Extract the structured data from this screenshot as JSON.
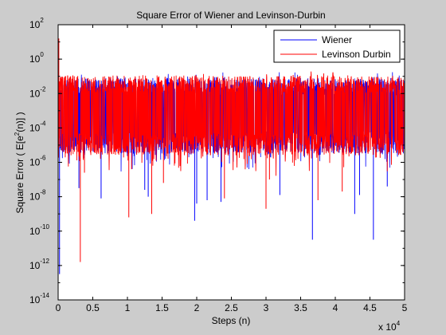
{
  "figure": {
    "background": "#cccccc",
    "axes_background": "#ffffff"
  },
  "chart_data": {
    "type": "line",
    "title": "Square Error of Wiener and Levinson-Durbin",
    "xlabel": "Steps (n)",
    "ylabel_prefix": "Square Error ( E[e",
    "ylabel_sup": "2",
    "ylabel_suffix": "(n)] )",
    "x_multiplier_text": "x 10",
    "x_multiplier_exp": "4",
    "xlim": [
      0,
      5
    ],
    "ylim_log10": [
      -14,
      2
    ],
    "yscale": "log",
    "grid": false,
    "legend_position": "top-right",
    "x_ticks": [
      {
        "value": 0,
        "label": "0"
      },
      {
        "value": 0.5,
        "label": "0.5"
      },
      {
        "value": 1,
        "label": "1"
      },
      {
        "value": 1.5,
        "label": "1.5"
      },
      {
        "value": 2,
        "label": "2"
      },
      {
        "value": 2.5,
        "label": "2.5"
      },
      {
        "value": 3,
        "label": "3"
      },
      {
        "value": 3.5,
        "label": "3.5"
      },
      {
        "value": 4,
        "label": "4"
      },
      {
        "value": 4.5,
        "label": "4.5"
      },
      {
        "value": 5,
        "label": "5"
      }
    ],
    "y_ticks": [
      {
        "exp": 2,
        "base": "10",
        "sup": "2"
      },
      {
        "exp": 0,
        "base": "10",
        "sup": "0"
      },
      {
        "exp": -2,
        "base": "10",
        "sup": "-2"
      },
      {
        "exp": -4,
        "base": "10",
        "sup": "-4"
      },
      {
        "exp": -6,
        "base": "10",
        "sup": "-6"
      },
      {
        "exp": -8,
        "base": "10",
        "sup": "-8"
      },
      {
        "exp": -10,
        "base": "10",
        "sup": "-10"
      },
      {
        "exp": -12,
        "base": "10",
        "sup": "-12"
      },
      {
        "exp": -14,
        "base": "10",
        "sup": "-14"
      }
    ],
    "series": [
      {
        "name": "Wiener",
        "color": "#0000ff",
        "band_log10": {
          "upper": -1.1,
          "lower": -5.5,
          "peak_top": -0.7
        },
        "dips": [
          {
            "x": 0.02,
            "log10": -12.5
          },
          {
            "x": 0.3,
            "log10": -7.5
          },
          {
            "x": 0.62,
            "log10": -8.1
          },
          {
            "x": 1.25,
            "log10": -7.6
          },
          {
            "x": 1.3,
            "log10": -8.0
          },
          {
            "x": 1.97,
            "log10": -9.4
          },
          {
            "x": 2.0,
            "log10": -8.4
          },
          {
            "x": 2.15,
            "log10": -8.2
          },
          {
            "x": 2.35,
            "log10": -8.3
          },
          {
            "x": 3.2,
            "log10": -7.9
          },
          {
            "x": 3.67,
            "log10": -10.5
          },
          {
            "x": 4.28,
            "log10": -9.0
          },
          {
            "x": 4.35,
            "log10": -7.9
          },
          {
            "x": 4.55,
            "log10": -10.5
          },
          {
            "x": 4.75,
            "log10": -7.4
          }
        ]
      },
      {
        "name": "Levinson Durbin",
        "color": "#ff0000",
        "band_log10": {
          "upper": -0.95,
          "lower": -5.6,
          "peak_top": -0.7
        },
        "dips": [
          {
            "x": 0.01,
            "log10": 1.2
          },
          {
            "x": 0.0,
            "log10": -10.5
          },
          {
            "x": 0.32,
            "log10": -11.8
          },
          {
            "x": 0.38,
            "log10": -6.6
          },
          {
            "x": 1.02,
            "log10": -9.2
          },
          {
            "x": 1.06,
            "log10": -6.4
          },
          {
            "x": 1.35,
            "log10": -9.0
          },
          {
            "x": 1.52,
            "log10": -7.2
          },
          {
            "x": 2.4,
            "log10": -8.1
          },
          {
            "x": 3.0,
            "log10": -8.7
          },
          {
            "x": 3.05,
            "log10": -7.0
          },
          {
            "x": 3.75,
            "log10": -8.2
          },
          {
            "x": 4.1,
            "log10": -7.7
          }
        ]
      }
    ]
  }
}
